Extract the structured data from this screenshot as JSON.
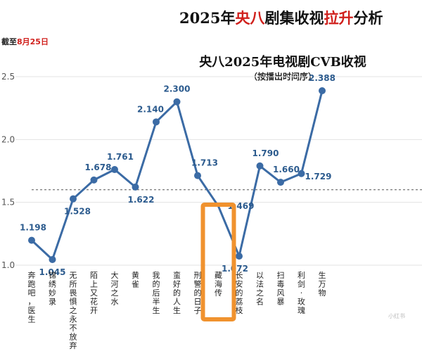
{
  "header": {
    "title_parts": [
      "2025年",
      "央八",
      "剧集收视",
      "拉升",
      "分析"
    ],
    "as_of_parts": [
      "截至",
      "8月25日"
    ]
  },
  "watermark": "小红书",
  "chart_data": {
    "type": "line",
    "title": "央八2025年电视剧CVB收视",
    "subtitle": "（按播出时间序）",
    "categories": [
      "奔跑吧，医生",
      "锦绣妙录",
      "无所畏惧之永不放弃",
      "陌上又花开",
      "大河之水",
      "黄雀",
      "我的后半生",
      "蛮好的人生",
      "刑警的日子",
      "藏海传",
      "长安的荔枝",
      "以法之名",
      "扫毒风暴",
      "利剑·玫瑰",
      "生万物"
    ],
    "values": [
      1.198,
      1.045,
      1.528,
      1.678,
      1.761,
      1.622,
      2.14,
      2.3,
      1.713,
      null,
      1.072,
      1.79,
      1.66,
      1.729,
      2.388
    ],
    "value_labels": [
      "1.198",
      "1.045",
      "1.528",
      "1.678",
      "1.761",
      "1.622",
      "2.140",
      "2.300",
      "1.713",
      "",
      "1.072",
      "1.790",
      "1.660",
      "1.729",
      "2.388"
    ],
    "ylim": [
      1.0,
      2.5
    ],
    "yticks": [
      "1.0",
      "1.5",
      "2.0",
      "2.5"
    ],
    "reference_line": 1.6,
    "highlighted_category": "藏海传",
    "highlight_value": 1.469,
    "highlight_value_label": "1.469",
    "grid": true,
    "xlabel": "",
    "ylabel": "",
    "colors": {
      "line": "#3b6ba5",
      "label": "#2c5b8e",
      "highlight": "#f0922e",
      "grid": "#e3e3e3",
      "reference": "#555555"
    }
  }
}
